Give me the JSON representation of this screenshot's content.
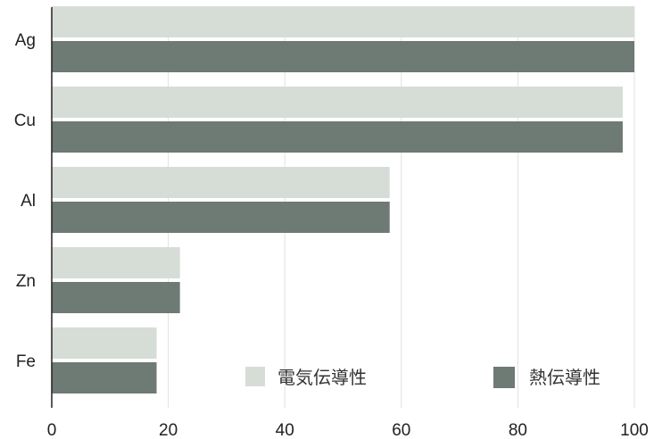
{
  "chart_data": {
    "type": "bar",
    "orientation": "horizontal",
    "categories": [
      "Ag",
      "Cu",
      "Al",
      "Zn",
      "Fe"
    ],
    "series": [
      {
        "name": "電気伝導性",
        "values": [
          100,
          98,
          58,
          22,
          18
        ],
        "color": "#d6ddd6"
      },
      {
        "name": "熱伝導性",
        "values": [
          100,
          98,
          58,
          22,
          18
        ],
        "color": "#6e7a74"
      }
    ],
    "xlim": [
      0,
      100
    ],
    "xticks": [
      "0",
      "20",
      "40",
      "60",
      "80",
      "100"
    ],
    "grid": true,
    "legend_position": "bottom-right",
    "title": "",
    "xlabel": "",
    "ylabel": ""
  }
}
